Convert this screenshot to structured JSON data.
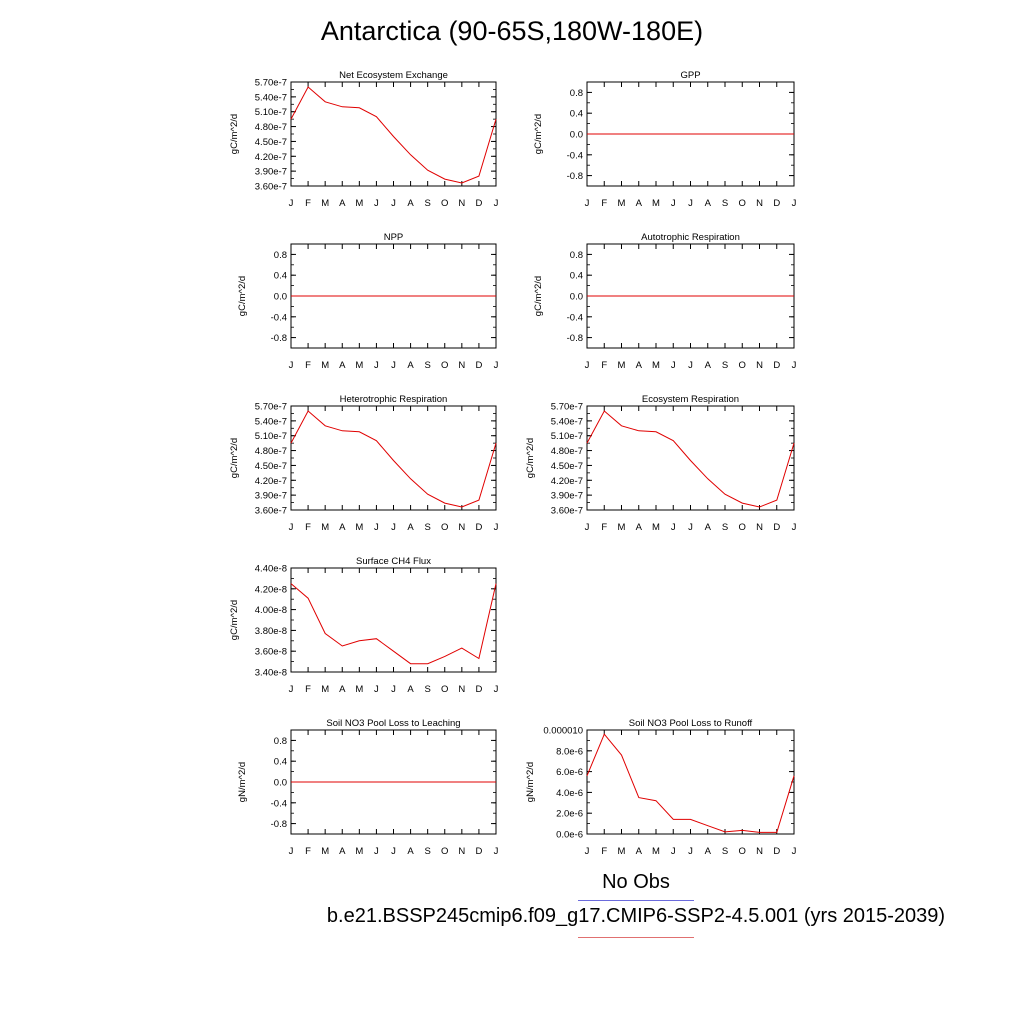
{
  "title": "Antarctica (90-65S,180W-180E)",
  "legend": {
    "obs_label": "No Obs",
    "case_label": "b.e21.BSSP245cmip6.f09_g17.CMIP6-SSP2-4.5.001 (yrs 2015-2039)",
    "obs_color": "#6b6bdc",
    "case_color": "#e07070"
  },
  "line_color": "#e00000",
  "chart_data": [
    {
      "type": "line",
      "title": "Net Ecosystem Exchange",
      "ylabel": "gC/m^2/d",
      "categories": [
        "J",
        "F",
        "M",
        "A",
        "M",
        "J",
        "J",
        "A",
        "S",
        "O",
        "N",
        "D",
        "J"
      ],
      "ylim": [
        3.6e-07,
        5.7e-07
      ],
      "yticks": [
        "5.70e-7",
        "5.40e-7",
        "5.10e-7",
        "4.80e-7",
        "4.50e-7",
        "4.20e-7",
        "3.90e-7",
        "3.60e-7"
      ],
      "values": [
        4.95e-07,
        5.6e-07,
        5.3e-07,
        5.2e-07,
        5.18e-07,
        5e-07,
        4.6e-07,
        4.23e-07,
        3.92e-07,
        3.74e-07,
        3.66e-07,
        3.8e-07,
        4.95e-07
      ]
    },
    {
      "type": "line",
      "title": "GPP",
      "ylabel": "gC/m^2/d",
      "categories": [
        "J",
        "F",
        "M",
        "A",
        "M",
        "J",
        "J",
        "A",
        "S",
        "O",
        "N",
        "D",
        "J"
      ],
      "ylim": [
        -1.0,
        1.0
      ],
      "yticks": [
        "0.8",
        "0.4",
        "0.0",
        "-0.4",
        "-0.8"
      ],
      "values": [
        0,
        0,
        0,
        0,
        0,
        0,
        0,
        0,
        0,
        0,
        0,
        0,
        0
      ]
    },
    {
      "type": "line",
      "title": "NPP",
      "ylabel": "gC/m^2/d",
      "categories": [
        "J",
        "F",
        "M",
        "A",
        "M",
        "J",
        "J",
        "A",
        "S",
        "O",
        "N",
        "D",
        "J"
      ],
      "ylim": [
        -1.0,
        1.0
      ],
      "yticks": [
        "0.8",
        "0.4",
        "0.0",
        "-0.4",
        "-0.8"
      ],
      "values": [
        0,
        0,
        0,
        0,
        0,
        0,
        0,
        0,
        0,
        0,
        0,
        0,
        0
      ]
    },
    {
      "type": "line",
      "title": "Autotrophic Respiration",
      "ylabel": "gC/m^2/d",
      "categories": [
        "J",
        "F",
        "M",
        "A",
        "M",
        "J",
        "J",
        "A",
        "S",
        "O",
        "N",
        "D",
        "J"
      ],
      "ylim": [
        -1.0,
        1.0
      ],
      "yticks": [
        "0.8",
        "0.4",
        "0.0",
        "-0.4",
        "-0.8"
      ],
      "values": [
        0,
        0,
        0,
        0,
        0,
        0,
        0,
        0,
        0,
        0,
        0,
        0,
        0
      ]
    },
    {
      "type": "line",
      "title": "Heterotrophic Respiration",
      "ylabel": "gC/m^2/d",
      "categories": [
        "J",
        "F",
        "M",
        "A",
        "M",
        "J",
        "J",
        "A",
        "S",
        "O",
        "N",
        "D",
        "J"
      ],
      "ylim": [
        3.6e-07,
        5.7e-07
      ],
      "yticks": [
        "5.70e-7",
        "5.40e-7",
        "5.10e-7",
        "4.80e-7",
        "4.50e-7",
        "4.20e-7",
        "3.90e-7",
        "3.60e-7"
      ],
      "values": [
        4.95e-07,
        5.6e-07,
        5.3e-07,
        5.2e-07,
        5.18e-07,
        5e-07,
        4.6e-07,
        4.23e-07,
        3.92e-07,
        3.74e-07,
        3.66e-07,
        3.8e-07,
        4.95e-07
      ]
    },
    {
      "type": "line",
      "title": "Ecosystem Respiration",
      "ylabel": "gC/m^2/d",
      "categories": [
        "J",
        "F",
        "M",
        "A",
        "M",
        "J",
        "J",
        "A",
        "S",
        "O",
        "N",
        "D",
        "J"
      ],
      "ylim": [
        3.6e-07,
        5.7e-07
      ],
      "yticks": [
        "5.70e-7",
        "5.40e-7",
        "5.10e-7",
        "4.80e-7",
        "4.50e-7",
        "4.20e-7",
        "3.90e-7",
        "3.60e-7"
      ],
      "values": [
        4.95e-07,
        5.6e-07,
        5.3e-07,
        5.2e-07,
        5.18e-07,
        5e-07,
        4.6e-07,
        4.23e-07,
        3.92e-07,
        3.74e-07,
        3.66e-07,
        3.8e-07,
        4.95e-07
      ]
    },
    {
      "type": "line",
      "title": "Surface CH4 Flux",
      "ylabel": "gC/m^2/d",
      "categories": [
        "J",
        "F",
        "M",
        "A",
        "M",
        "J",
        "J",
        "A",
        "S",
        "O",
        "N",
        "D",
        "J"
      ],
      "ylim": [
        3.4e-08,
        4.4e-08
      ],
      "yticks": [
        "4.40e-8",
        "4.20e-8",
        "4.00e-8",
        "3.80e-8",
        "3.60e-8",
        "3.40e-8"
      ],
      "values": [
        4.25e-08,
        4.11e-08,
        3.77e-08,
        3.65e-08,
        3.7e-08,
        3.72e-08,
        3.6e-08,
        3.48e-08,
        3.48e-08,
        3.55e-08,
        3.63e-08,
        3.53e-08,
        4.25e-08
      ]
    },
    {
      "type": "line",
      "title": "Soil NO3 Pool Loss to Leaching",
      "ylabel": "gN/m^2/d",
      "categories": [
        "J",
        "F",
        "M",
        "A",
        "M",
        "J",
        "J",
        "A",
        "S",
        "O",
        "N",
        "D",
        "J"
      ],
      "ylim": [
        -1.0,
        1.0
      ],
      "yticks": [
        "0.8",
        "0.4",
        "0.0",
        "-0.4",
        "-0.8"
      ],
      "values": [
        0,
        0,
        0,
        0,
        0,
        0,
        0,
        0,
        0,
        0,
        0,
        0,
        0
      ]
    },
    {
      "type": "line",
      "title": "Soil NO3 Pool Loss to Runoff",
      "ylabel": "gN/m^2/d",
      "categories": [
        "J",
        "F",
        "M",
        "A",
        "M",
        "J",
        "J",
        "A",
        "S",
        "O",
        "N",
        "D",
        "J"
      ],
      "ylim": [
        0,
        1e-05
      ],
      "yticks": [
        "0.000010",
        "8.0e-6",
        "6.0e-6",
        "4.0e-6",
        "2.0e-6",
        "0.0e-6"
      ],
      "values": [
        5.6e-06,
        9.6e-06,
        7.6e-06,
        3.5e-06,
        3.2e-06,
        1.4e-06,
        1.4e-06,
        8e-07,
        2e-07,
        3.5e-07,
        1.5e-07,
        1.5e-07,
        5.6e-06
      ]
    }
  ]
}
